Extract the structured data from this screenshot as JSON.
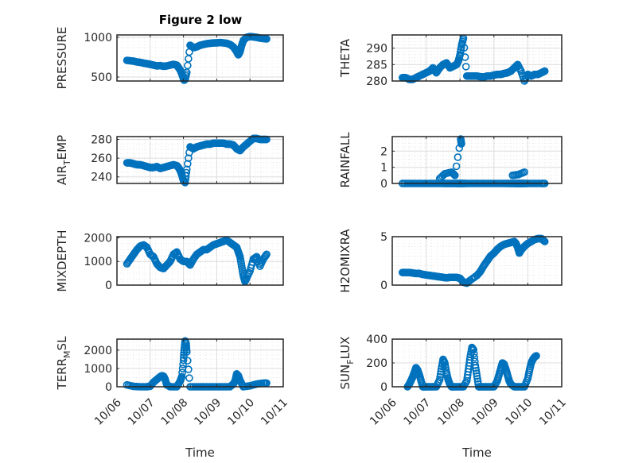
{
  "figure": {
    "title": "Figure 2 low",
    "marker_color": "#0072BD",
    "x_axis_label": "Time",
    "x_ticks": [
      "10/06",
      "10/07",
      "10/08",
      "10/09",
      "10/10",
      "10/11"
    ]
  },
  "chart_data": [
    {
      "type": "scatter",
      "name": "pressure",
      "title": "Figure 2 low",
      "ylabel": "PRESSURE",
      "ylabel_parts": [
        "PRESSURE"
      ],
      "xlabel": "",
      "xlim": [
        0,
        5
      ],
      "ylim": [
        450,
        1030
      ],
      "yticks": [
        500,
        1000
      ],
      "grid": true,
      "x": [
        0.3,
        0.4,
        0.5,
        0.6,
        0.7,
        0.8,
        0.9,
        1.0,
        1.1,
        1.2,
        1.3,
        1.4,
        1.5,
        1.6,
        1.7,
        1.8,
        1.85,
        1.9,
        1.95,
        2.0,
        2.02,
        2.05,
        2.1,
        2.2,
        2.3,
        2.4,
        2.5,
        2.6,
        2.7,
        2.8,
        2.9,
        3.0,
        3.1,
        3.2,
        3.3,
        3.4,
        3.5,
        3.6,
        3.65,
        3.7,
        3.75,
        3.8,
        3.9,
        4.0,
        4.1,
        4.2,
        4.3,
        4.4,
        4.5
      ],
      "y": [
        710,
        705,
        700,
        690,
        685,
        675,
        668,
        660,
        650,
        640,
        645,
        635,
        640,
        650,
        660,
        650,
        620,
        590,
        540,
        480,
        460,
        470,
        560,
        900,
        870,
        880,
        900,
        910,
        920,
        925,
        930,
        930,
        935,
        930,
        925,
        910,
        880,
        820,
        780,
        820,
        900,
        960,
        1000,
        1010,
        1005,
        1000,
        990,
        985,
        980
      ]
    },
    {
      "type": "scatter",
      "name": "theta",
      "ylabel": "THETA",
      "ylabel_parts": [
        "THETA"
      ],
      "xlim": [
        0,
        5
      ],
      "ylim": [
        280,
        294
      ],
      "yticks": [
        280,
        285,
        290
      ],
      "grid": true,
      "x": [
        0.3,
        0.4,
        0.5,
        0.6,
        0.7,
        0.8,
        0.9,
        1.0,
        1.1,
        1.2,
        1.3,
        1.4,
        1.5,
        1.6,
        1.7,
        1.8,
        1.9,
        1.95,
        2.0,
        2.05,
        2.1,
        2.2,
        2.3,
        2.4,
        2.5,
        2.6,
        2.7,
        2.8,
        2.9,
        3.0,
        3.1,
        3.2,
        3.3,
        3.4,
        3.5,
        3.6,
        3.7,
        3.8,
        3.9,
        4.0,
        4.1,
        4.2,
        4.3,
        4.4,
        4.5
      ],
      "y": [
        281,
        281,
        280.5,
        280.5,
        281,
        281.5,
        282,
        282.5,
        283,
        284,
        282.5,
        284,
        285,
        285.5,
        284,
        284.5,
        285,
        286,
        288,
        291,
        293,
        281.5,
        281.5,
        281.5,
        281.5,
        281.3,
        281.2,
        281.5,
        281.5,
        281.8,
        282,
        282,
        282.3,
        282.5,
        283,
        284,
        285,
        283,
        280,
        282,
        281.5,
        282,
        282,
        282.5,
        283
      ]
    },
    {
      "type": "scatter",
      "name": "air_temp",
      "ylabel": "AIR_TEMP",
      "ylabel_parts": [
        "AIR",
        "T",
        "EMP"
      ],
      "xlim": [
        0,
        5
      ],
      "ylim": [
        233,
        283
      ],
      "yticks": [
        240,
        260,
        280
      ],
      "grid": true,
      "x": [
        0.3,
        0.4,
        0.5,
        0.6,
        0.7,
        0.8,
        0.9,
        1.0,
        1.1,
        1.2,
        1.3,
        1.4,
        1.5,
        1.6,
        1.7,
        1.8,
        1.85,
        1.9,
        1.95,
        2.0,
        2.05,
        2.1,
        2.2,
        2.3,
        2.4,
        2.5,
        2.6,
        2.7,
        2.8,
        2.9,
        3.0,
        3.1,
        3.2,
        3.3,
        3.4,
        3.5,
        3.6,
        3.7,
        3.8,
        3.9,
        4.0,
        4.1,
        4.2,
        4.3,
        4.4,
        4.5
      ],
      "y": [
        255,
        255,
        254,
        253,
        253,
        252,
        251,
        250,
        250,
        251,
        249,
        250,
        251,
        252,
        253,
        252,
        250,
        247,
        242,
        236,
        234,
        248,
        272,
        270,
        272,
        273,
        274,
        275,
        275,
        276,
        276,
        276,
        276,
        275,
        275,
        274,
        270,
        268,
        272,
        275,
        278,
        281,
        281,
        280,
        280,
        280
      ]
    },
    {
      "type": "scatter",
      "name": "rainfall",
      "ylabel": "RAINFALL",
      "ylabel_parts": [
        "RAINFALL"
      ],
      "xlim": [
        0,
        5
      ],
      "ylim": [
        0,
        2.9
      ],
      "yticks": [
        0,
        1,
        2
      ],
      "grid": true,
      "x": [
        0.3,
        0.5,
        0.7,
        0.9,
        1.1,
        1.3,
        1.5,
        1.6,
        1.7,
        1.8,
        1.9,
        1.95,
        2.0,
        2.05,
        2.1,
        2.2,
        2.4,
        2.6,
        2.8,
        3.0,
        3.2,
        3.4,
        3.5,
        3.6,
        3.65,
        3.7,
        3.75,
        3.8,
        3.85,
        3.9,
        4.0,
        4.2,
        4.4,
        4.5,
        1.4,
        1.55,
        1.75,
        1.85,
        2.02,
        2.04,
        3.55,
        3.72,
        3.9
      ],
      "y": [
        0,
        0,
        0,
        0,
        0,
        0,
        0,
        0,
        0,
        0,
        0,
        0,
        0,
        0,
        0,
        0,
        0,
        0,
        0,
        0,
        0,
        0,
        0,
        0,
        0,
        0,
        0,
        0,
        0,
        0,
        0,
        0,
        0,
        0,
        0.3,
        0.6,
        0.7,
        0.5,
        2.75,
        2.45,
        0.5,
        0.55,
        0.7
      ]
    },
    {
      "type": "scatter",
      "name": "mixdepth",
      "ylabel": "MIXDEPTH",
      "ylabel_parts": [
        "MIXDEPTH"
      ],
      "xlim": [
        0,
        5
      ],
      "ylim": [
        0,
        2050
      ],
      "yticks": [
        0,
        1000,
        2000
      ],
      "grid": true,
      "x": [
        0.3,
        0.4,
        0.5,
        0.6,
        0.7,
        0.8,
        0.9,
        1.0,
        1.1,
        1.2,
        1.3,
        1.4,
        1.5,
        1.6,
        1.7,
        1.8,
        1.9,
        2.0,
        2.1,
        2.2,
        2.3,
        2.4,
        2.5,
        2.6,
        2.7,
        2.8,
        2.9,
        3.0,
        3.1,
        3.2,
        3.3,
        3.4,
        3.5,
        3.6,
        3.65,
        3.7,
        3.75,
        3.8,
        3.85,
        3.9,
        4.0,
        4.1,
        4.2,
        4.3,
        4.4,
        4.5
      ],
      "y": [
        900,
        1100,
        1300,
        1500,
        1650,
        1700,
        1600,
        1300,
        1200,
        900,
        750,
        700,
        850,
        1000,
        1300,
        1400,
        1100,
        1000,
        1000,
        850,
        1100,
        1300,
        1400,
        1500,
        1500,
        1600,
        1700,
        1750,
        1800,
        1850,
        1900,
        1800,
        1700,
        1600,
        1400,
        1200,
        800,
        400,
        150,
        300,
        600,
        1100,
        1200,
        800,
        1100,
        1300
      ]
    },
    {
      "type": "scatter",
      "name": "h2omixra",
      "ylabel": "H2OMIXRA",
      "ylabel_parts": [
        "H2OMIXRA"
      ],
      "xlim": [
        0,
        5
      ],
      "ylim": [
        0,
        5
      ],
      "yticks": [
        0,
        5
      ],
      "grid": true,
      "x": [
        0.3,
        0.4,
        0.5,
        0.6,
        0.7,
        0.8,
        0.9,
        1.0,
        1.1,
        1.2,
        1.3,
        1.4,
        1.5,
        1.6,
        1.7,
        1.8,
        1.9,
        2.0,
        2.1,
        2.2,
        2.3,
        2.5,
        2.6,
        2.7,
        2.8,
        2.9,
        3.0,
        3.1,
        3.2,
        3.3,
        3.4,
        3.5,
        3.6,
        3.65,
        3.7,
        3.75,
        3.8,
        3.9,
        4.0,
        4.1,
        4.2,
        4.3,
        4.4,
        4.5
      ],
      "y": [
        1.3,
        1.3,
        1.3,
        1.25,
        1.2,
        1.2,
        1.1,
        1.05,
        1.0,
        0.95,
        0.9,
        0.85,
        0.8,
        0.75,
        0.8,
        0.8,
        0.8,
        0.7,
        0.3,
        0.2,
        0.5,
        1.0,
        1.4,
        2.0,
        2.5,
        3.0,
        3.3,
        3.7,
        4.0,
        4.2,
        4.3,
        4.4,
        4.5,
        4.3,
        3.9,
        3.3,
        3.6,
        4.0,
        4.3,
        4.5,
        4.7,
        4.8,
        4.8,
        4.5
      ]
    },
    {
      "type": "scatter",
      "name": "terr_msl",
      "ylabel": "TERR_MSL",
      "ylabel_parts": [
        "TERR",
        "M",
        "SL"
      ],
      "xlabel": "Time",
      "xlim": [
        0,
        5
      ],
      "ylim": [
        0,
        2600
      ],
      "yticks": [
        0,
        1000,
        2000
      ],
      "xtick_labels": [
        "10/06",
        "10/07",
        "10/08",
        "10/09",
        "10/10",
        "10/11"
      ],
      "grid": true,
      "x": [
        0.3,
        0.5,
        0.7,
        0.9,
        1.0,
        1.1,
        1.2,
        1.3,
        1.35,
        1.4,
        1.45,
        1.5,
        1.6,
        1.8,
        1.9,
        1.95,
        2.0,
        2.02,
        2.05,
        2.08,
        2.1,
        2.2,
        2.4,
        2.6,
        2.8,
        3.0,
        3.2,
        3.4,
        3.5,
        3.55,
        3.6,
        3.65,
        3.7,
        3.8,
        4.0,
        4.2,
        4.4,
        4.5
      ],
      "y": [
        100,
        20,
        0,
        0,
        30,
        250,
        400,
        550,
        600,
        580,
        400,
        100,
        0,
        0,
        300,
        550,
        1450,
        2000,
        2500,
        2350,
        1900,
        0,
        0,
        0,
        0,
        0,
        0,
        0,
        150,
        300,
        700,
        600,
        350,
        0,
        50,
        150,
        200,
        200
      ]
    },
    {
      "type": "scatter",
      "name": "sun_flux",
      "ylabel": "SUN_FLUX",
      "ylabel_parts": [
        "SUN",
        "F",
        "LUX"
      ],
      "xlabel": "Time",
      "xlim": [
        0,
        5
      ],
      "ylim": [
        0,
        400
      ],
      "yticks": [
        0,
        200,
        400
      ],
      "xtick_labels": [
        "10/06",
        "10/07",
        "10/08",
        "10/09",
        "10/10",
        "10/11"
      ],
      "grid": true,
      "x": [
        0.45,
        0.5,
        0.55,
        0.6,
        0.65,
        0.7,
        0.75,
        0.8,
        0.85,
        0.9,
        0.95,
        1.0,
        1.1,
        1.2,
        1.3,
        1.4,
        1.45,
        1.5,
        1.55,
        1.6,
        1.65,
        1.7,
        1.75,
        1.8,
        1.9,
        2.0,
        2.1,
        2.2,
        2.25,
        2.3,
        2.35,
        2.4,
        2.45,
        2.5,
        2.55,
        2.6,
        2.7,
        2.8,
        2.9,
        3.0,
        3.1,
        3.15,
        3.2,
        3.25,
        3.3,
        3.35,
        3.4,
        3.45,
        3.5,
        3.6,
        3.7,
        3.8,
        3.9,
        4.0,
        4.05,
        4.1,
        4.15,
        4.2,
        4.25
      ],
      "y": [
        0,
        20,
        50,
        80,
        120,
        160,
        140,
        100,
        50,
        0,
        0,
        0,
        0,
        0,
        0,
        60,
        150,
        230,
        200,
        120,
        60,
        20,
        0,
        0,
        0,
        0,
        0,
        50,
        150,
        250,
        330,
        310,
        180,
        90,
        0,
        0,
        0,
        0,
        0,
        0,
        50,
        100,
        150,
        200,
        190,
        150,
        100,
        50,
        20,
        0,
        0,
        0,
        0,
        70,
        140,
        200,
        230,
        250,
        260
      ]
    }
  ]
}
